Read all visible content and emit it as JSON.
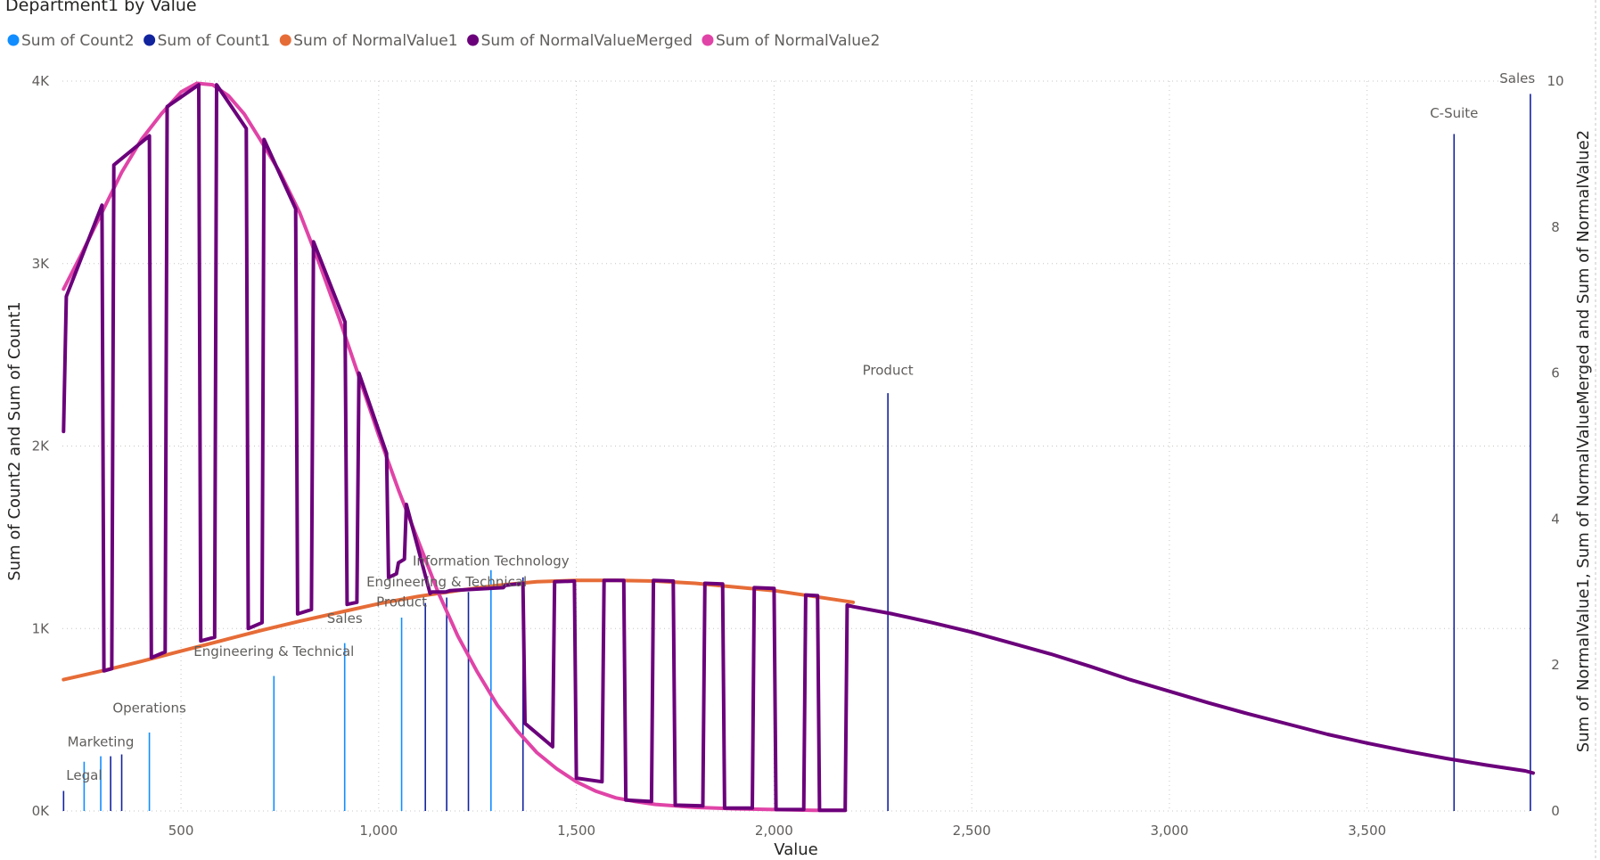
{
  "chart_data": {
    "type": "combo",
    "title": "Department1 by Value",
    "xlabel": "Value",
    "ylabel_left": "Sum of Count2 and Sum of Count1",
    "ylabel_right": "Sum of NormalValue1, Sum of NormalValueMerged and Sum of NormalValue2",
    "xlim": [
      200,
      3920
    ],
    "ylim_left": [
      0,
      4000
    ],
    "ylim_right": [
      0,
      10
    ],
    "grid": true,
    "legend_position": "top-left",
    "x_ticks": [
      500,
      1000,
      1500,
      2000,
      2500,
      3000,
      3500
    ],
    "x_tick_labels": [
      "500",
      "1,000",
      "1,500",
      "2,000",
      "2,500",
      "3,000",
      "3,500"
    ],
    "y_left_ticks": [
      0,
      1000,
      2000,
      3000,
      4000
    ],
    "y_left_tick_labels": [
      "0K",
      "1K",
      "2K",
      "3K",
      "4K"
    ],
    "y_right_ticks": [
      0,
      2,
      4,
      6,
      8,
      10
    ],
    "y_right_tick_labels": [
      "0",
      "2",
      "4",
      "6",
      "8",
      "10"
    ],
    "legend": [
      {
        "name": "Sum of Count2",
        "color": "#118DFF"
      },
      {
        "name": "Sum of Count1",
        "color": "#12239E"
      },
      {
        "name": "Sum of NormalValue1",
        "color": "#E66C37"
      },
      {
        "name": "Sum of NormalValueMerged",
        "color": "#6B007B"
      },
      {
        "name": "Sum of NormalValue2",
        "color": "#E044A7"
      }
    ],
    "count2_bars": [
      {
        "x": 255,
        "y": 270
      },
      {
        "x": 297,
        "y": 300
      },
      {
        "x": 420,
        "y": 430
      },
      {
        "x": 735,
        "y": 740
      },
      {
        "x": 914,
        "y": 920
      },
      {
        "x": 1058,
        "y": 1060
      },
      {
        "x": 1284,
        "y": 1320
      }
    ],
    "count1_bars": [
      {
        "x": 203,
        "y": 110
      },
      {
        "x": 322,
        "y": 300
      },
      {
        "x": 350,
        "y": 310
      },
      {
        "x": 1118,
        "y": 1140
      },
      {
        "x": 1172,
        "y": 1170
      },
      {
        "x": 1227,
        "y": 1200
      },
      {
        "x": 1365,
        "y": 1280
      },
      {
        "x": 2288,
        "y": 2290
      },
      {
        "x": 3720,
        "y": 3710
      },
      {
        "x": 3913,
        "y": 3930
      }
    ],
    "bar_labels": [
      {
        "text": "Legal",
        "x": 255,
        "y": 170
      },
      {
        "text": "Marketing",
        "x": 297,
        "y": 355
      },
      {
        "text": "Operations",
        "x": 420,
        "y": 540
      },
      {
        "text": "Engineering & Technical",
        "x": 735,
        "y": 850
      },
      {
        "text": "Sales",
        "x": 914,
        "y": 1030
      },
      {
        "text": "Product",
        "x": 1058,
        "y": 1120
      },
      {
        "text": "Engineering & Technical",
        "x": 1172,
        "y": 1230
      },
      {
        "text": "Information Technology",
        "x": 1284,
        "y": 1345
      },
      {
        "text": "Product",
        "x": 2288,
        "y": 2390
      },
      {
        "text": "C-Suite",
        "x": 3720,
        "y": 3800
      },
      {
        "text": "Sales",
        "x": 3880,
        "y": 3990
      }
    ],
    "normal_value1": {
      "x": [
        203,
        300,
        400,
        500,
        600,
        700,
        800,
        900,
        1000,
        1100,
        1200,
        1300,
        1400,
        1500,
        1600,
        1700,
        1800,
        1900,
        2000,
        2100,
        2200
      ],
      "y": [
        1.8,
        1.92,
        2.05,
        2.19,
        2.33,
        2.47,
        2.6,
        2.72,
        2.84,
        2.94,
        3.02,
        3.09,
        3.14,
        3.16,
        3.16,
        3.15,
        3.12,
        3.07,
        3.02,
        2.94,
        2.86
      ]
    },
    "normal_value2": {
      "x": [
        203,
        250,
        300,
        350,
        400,
        450,
        500,
        540,
        580,
        620,
        660,
        700,
        750,
        800,
        850,
        900,
        950,
        1000,
        1050,
        1100,
        1150,
        1200,
        1250,
        1300,
        1350,
        1400,
        1450,
        1500,
        1550,
        1600,
        1650,
        1700,
        1800,
        1900,
        2000,
        2100,
        2180
      ],
      "y": [
        7.15,
        7.65,
        8.2,
        8.75,
        9.2,
        9.55,
        9.85,
        9.97,
        9.95,
        9.8,
        9.55,
        9.2,
        8.75,
        8.2,
        7.5,
        6.75,
        5.95,
        5.15,
        4.4,
        3.7,
        3.0,
        2.4,
        1.9,
        1.45,
        1.1,
        0.8,
        0.58,
        0.4,
        0.27,
        0.18,
        0.13,
        0.09,
        0.05,
        0.03,
        0.02,
        0.01,
        0.01
      ]
    },
    "normal_value_merged": {
      "x": [
        203,
        210,
        300,
        305,
        325,
        330,
        420,
        425,
        460,
        465,
        545,
        550,
        585,
        590,
        665,
        670,
        705,
        710,
        790,
        795,
        830,
        835,
        915,
        920,
        945,
        950,
        1020,
        1025,
        1045,
        1050,
        1065,
        1070,
        1130,
        1135,
        1170,
        1180,
        1315,
        1320,
        1365,
        1370,
        1440,
        1445,
        1495,
        1500,
        1565,
        1570,
        1620,
        1625,
        1690,
        1695,
        1745,
        1750,
        1820,
        1825,
        1870,
        1875,
        1945,
        1950,
        2000,
        2005,
        2075,
        2080,
        2110,
        2115,
        2180,
        2185,
        2200,
        2300,
        2400,
        2500,
        2600,
        2700,
        2800,
        2900,
        3000,
        3100,
        3200,
        3300,
        3400,
        3500,
        3600,
        3700,
        3800,
        3900,
        3920
      ],
      "y": [
        5.2,
        7.05,
        8.3,
        1.92,
        1.95,
        8.85,
        9.25,
        2.1,
        2.18,
        9.65,
        9.95,
        2.33,
        2.38,
        9.95,
        9.35,
        2.5,
        2.58,
        9.2,
        8.25,
        2.7,
        2.76,
        7.8,
        6.7,
        2.83,
        2.86,
        6.0,
        4.9,
        3.2,
        3.25,
        3.4,
        3.45,
        4.2,
        2.98,
        3.0,
        3.0,
        3.02,
        3.06,
        3.09,
        3.12,
        1.2,
        0.88,
        3.14,
        3.15,
        0.45,
        0.4,
        3.16,
        3.16,
        0.15,
        0.13,
        3.16,
        3.15,
        0.08,
        0.07,
        3.12,
        3.11,
        0.04,
        0.04,
        3.06,
        3.05,
        0.02,
        0.02,
        2.96,
        2.95,
        0.01,
        0.01,
        2.82,
        2.8,
        2.7,
        2.58,
        2.45,
        2.3,
        2.15,
        1.98,
        1.8,
        1.64,
        1.48,
        1.33,
        1.19,
        1.05,
        0.93,
        0.82,
        0.72,
        0.63,
        0.55,
        0.52
      ]
    }
  }
}
